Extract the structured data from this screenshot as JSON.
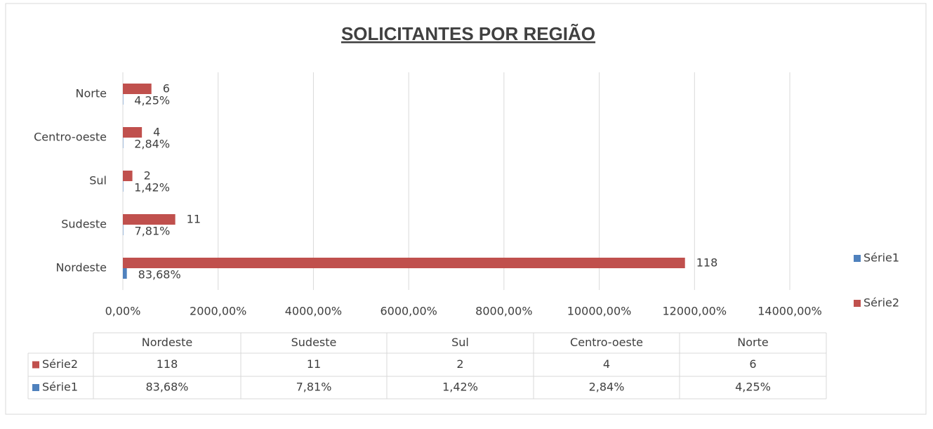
{
  "chart_data": {
    "type": "barh",
    "title": "SOLICITANTES POR REGIÃO",
    "categories": [
      "Nordeste",
      "Sudeste",
      "Sul",
      "Centro-oeste",
      "Norte"
    ],
    "series": [
      {
        "name": "Série1",
        "color": "#4f81bd",
        "values": [
          0.8368,
          0.0781,
          0.0142,
          0.0284,
          0.0425
        ],
        "value_labels": [
          "83,68%",
          "7,81%",
          "1,42%",
          "2,84%",
          "4,25%"
        ]
      },
      {
        "name": "Série2",
        "color": "#c0504d",
        "values": [
          118,
          11,
          2,
          4,
          6
        ]
      }
    ],
    "xlim": [
      0,
      140
    ],
    "xticks": [
      {
        "value": 0,
        "label": "0,00%"
      },
      {
        "value": 20,
        "label": "2000,00%"
      },
      {
        "value": 40,
        "label": "4000,00%"
      },
      {
        "value": 60,
        "label": "6000,00%"
      },
      {
        "value": 80,
        "label": "8000,00%"
      },
      {
        "value": 100,
        "label": "10000,00%"
      },
      {
        "value": 120,
        "label": "12000,00%"
      },
      {
        "value": 140,
        "label": "14000,00%"
      }
    ],
    "grid": true,
    "legend": "right",
    "data_table": true
  }
}
